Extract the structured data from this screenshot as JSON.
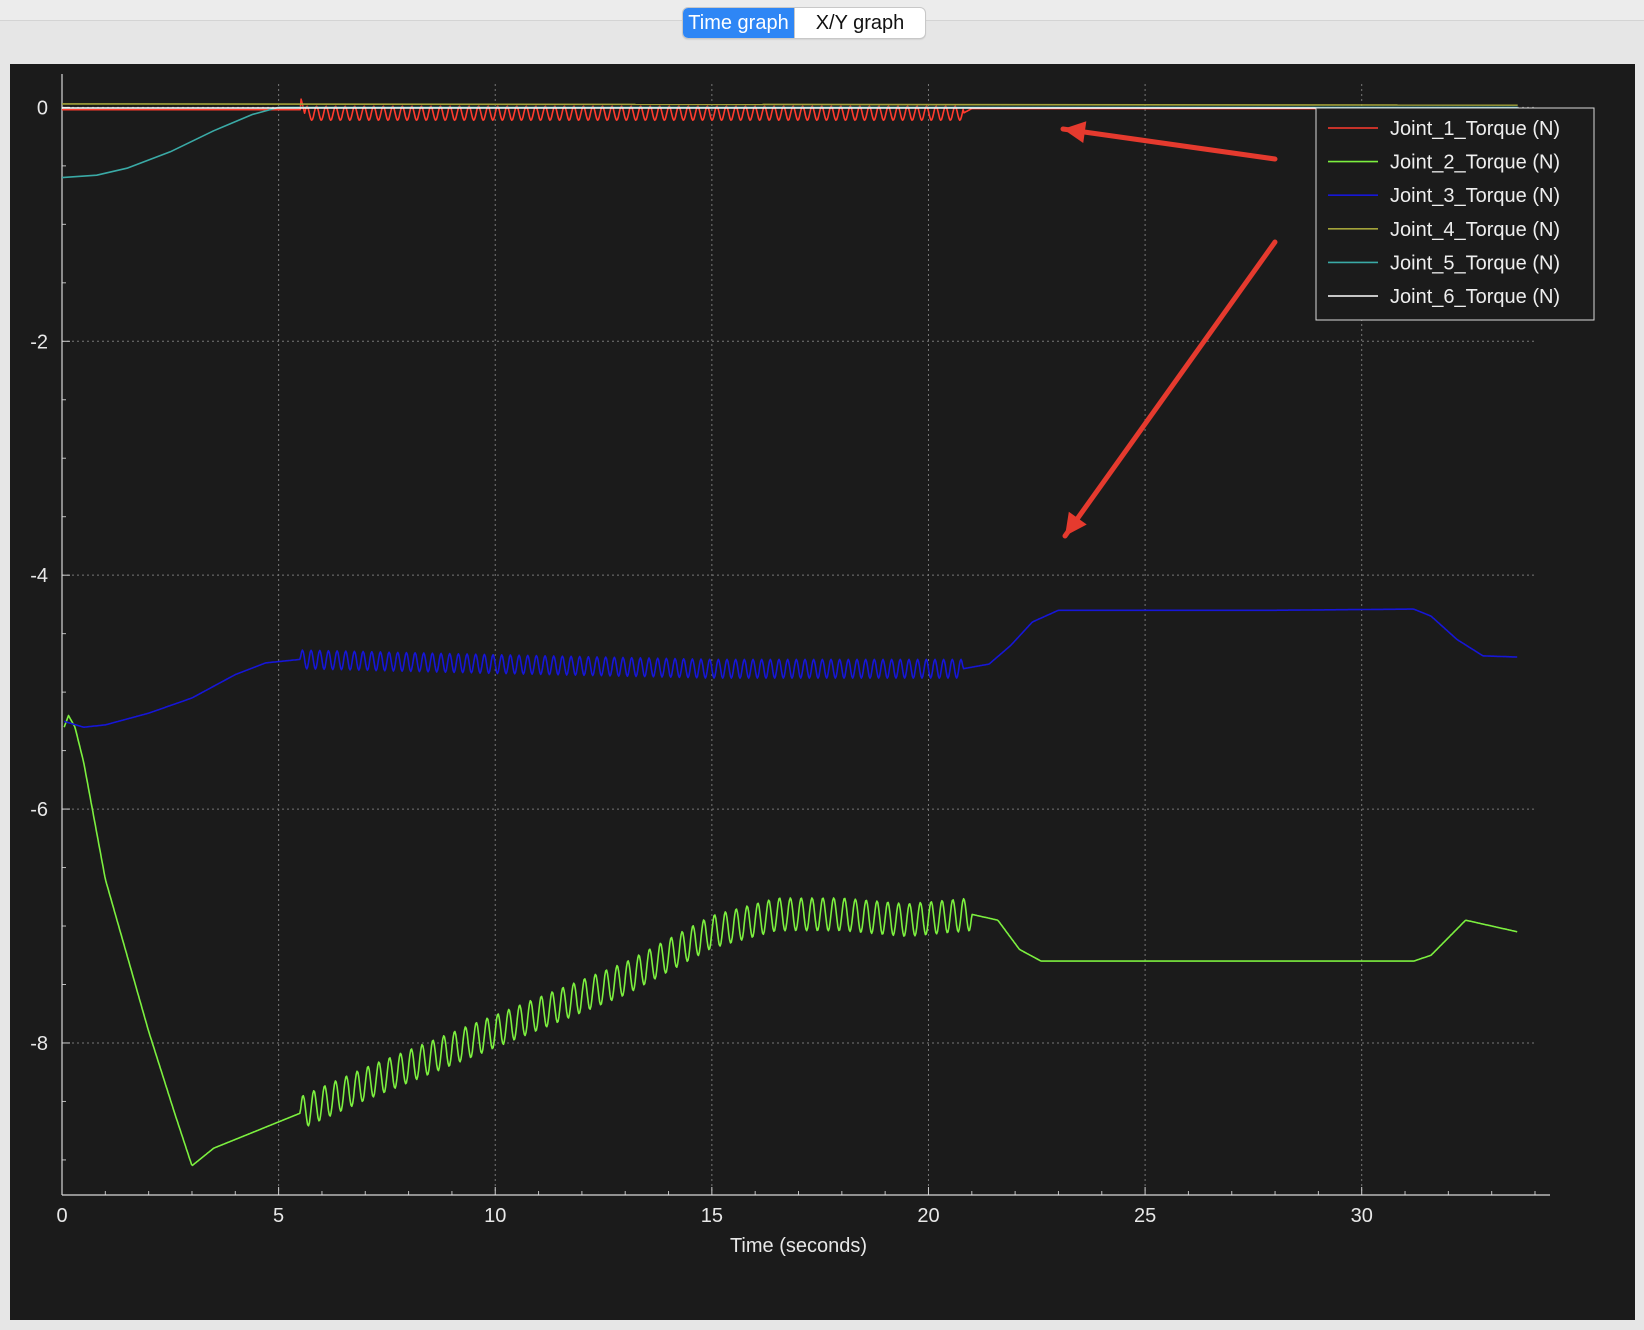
{
  "tabs": {
    "time_graph": "Time graph",
    "xy_graph": "X/Y graph",
    "active": "time_graph"
  },
  "colors": {
    "background": "#1b1b1b",
    "grid": "#777777",
    "axis_text": "#e8e8e8",
    "annotation_arrows": "#e53a2e"
  },
  "chart_data": {
    "type": "line",
    "title": "",
    "xlabel": "Time (seconds)",
    "ylabel": "",
    "xlim": [
      0,
      34
    ],
    "ylim": [
      -9.3,
      0.2
    ],
    "xticks": [
      0,
      5,
      10,
      15,
      20,
      25,
      30
    ],
    "yticks": [
      0,
      -2,
      -4,
      -6,
      -8
    ],
    "grid": true,
    "legend_position": "top-right",
    "series": [
      {
        "name": "Joint_1_Torque (N)",
        "color": "#ff3b2e",
        "points": [
          [
            0,
            -0.02
          ],
          [
            5.5,
            -0.02
          ],
          [
            5.5,
            0.1
          ],
          [
            5.6,
            -0.05
          ],
          [
            10,
            -0.05
          ],
          [
            15,
            -0.05
          ],
          [
            20.8,
            -0.05
          ],
          [
            21,
            -0.01
          ],
          [
            33.6,
            -0.01
          ]
        ],
        "oscillation": {
          "amplitude": 0.06,
          "period": 0.22,
          "from": 5.6,
          "to": 20.8
        }
      },
      {
        "name": "Joint_2_Torque (N)",
        "color": "#7cf03f",
        "points": [
          [
            0.05,
            -5.3
          ],
          [
            0.15,
            -5.2
          ],
          [
            0.3,
            -5.3
          ],
          [
            0.5,
            -5.6
          ],
          [
            1,
            -6.6
          ],
          [
            2,
            -7.9
          ],
          [
            2.6,
            -8.6
          ],
          [
            3,
            -9.05
          ],
          [
            3.5,
            -8.9
          ],
          [
            4.5,
            -8.75
          ],
          [
            5.5,
            -8.6
          ],
          [
            7,
            -8.35
          ],
          [
            9,
            -8.05
          ],
          [
            11,
            -7.75
          ],
          [
            13,
            -7.45
          ],
          [
            15,
            -7.05
          ],
          [
            16.5,
            -6.9
          ],
          [
            18,
            -6.9
          ],
          [
            19.5,
            -6.95
          ],
          [
            21,
            -6.9
          ],
          [
            21.6,
            -6.95
          ],
          [
            22.1,
            -7.2
          ],
          [
            22.6,
            -7.3
          ],
          [
            25,
            -7.3
          ],
          [
            28,
            -7.3
          ],
          [
            31.2,
            -7.3
          ],
          [
            31.6,
            -7.25
          ],
          [
            32,
            -7.1
          ],
          [
            32.4,
            -6.95
          ],
          [
            33.6,
            -7.05
          ]
        ],
        "oscillation": {
          "amplitude": 0.14,
          "period": 0.25,
          "from": 5.5,
          "to": 21
        }
      },
      {
        "name": "Joint_3_Torque (N)",
        "color": "#1616d8",
        "points": [
          [
            0.05,
            -5.25
          ],
          [
            0.5,
            -5.3
          ],
          [
            1,
            -5.28
          ],
          [
            2,
            -5.18
          ],
          [
            3,
            -5.05
          ],
          [
            4,
            -4.85
          ],
          [
            4.7,
            -4.75
          ],
          [
            5.5,
            -4.72
          ],
          [
            10,
            -4.76
          ],
          [
            15,
            -4.8
          ],
          [
            20.8,
            -4.8
          ],
          [
            21.4,
            -4.76
          ],
          [
            21.9,
            -4.6
          ],
          [
            22.4,
            -4.4
          ],
          [
            23,
            -4.3
          ],
          [
            25,
            -4.3
          ],
          [
            28,
            -4.3
          ],
          [
            31.2,
            -4.29
          ],
          [
            31.6,
            -4.35
          ],
          [
            32.2,
            -4.55
          ],
          [
            32.8,
            -4.69
          ],
          [
            33.6,
            -4.7
          ]
        ],
        "oscillation": {
          "amplitude": 0.08,
          "period": 0.2,
          "from": 5.5,
          "to": 20.8
        }
      },
      {
        "name": "Joint_4_Torque (N)",
        "color": "#a3a33a",
        "points": [
          [
            0,
            0.03
          ],
          [
            33.6,
            0.02
          ]
        ]
      },
      {
        "name": "Joint_5_Torque (N)",
        "color": "#3aaaa6",
        "points": [
          [
            0,
            -0.6
          ],
          [
            0.8,
            -0.58
          ],
          [
            1.5,
            -0.52
          ],
          [
            2.5,
            -0.38
          ],
          [
            3.5,
            -0.2
          ],
          [
            4.4,
            -0.06
          ],
          [
            5,
            0
          ],
          [
            10,
            0
          ],
          [
            15,
            0
          ],
          [
            20,
            0
          ],
          [
            33.6,
            0
          ]
        ]
      },
      {
        "name": "Joint_6_Torque (N)",
        "color": "#ffffff",
        "points": [
          [
            0,
            -0.005
          ],
          [
            33.6,
            -0.005
          ]
        ]
      }
    ]
  }
}
